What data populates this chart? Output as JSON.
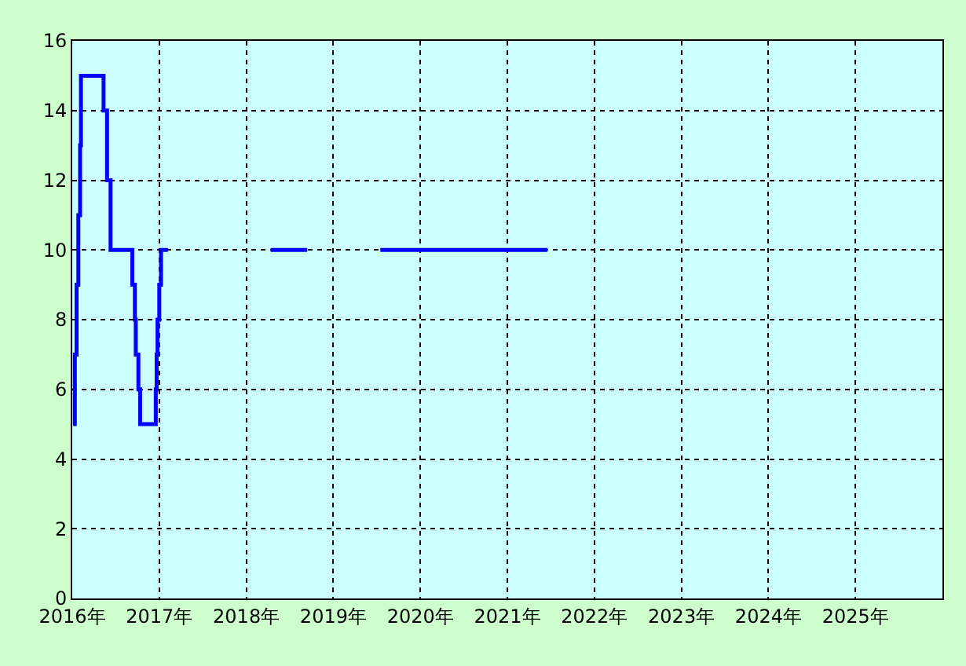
{
  "chart_data": {
    "type": "step",
    "x": [
      2016.01,
      2016.03,
      2016.05,
      2016.07,
      2016.09,
      2016.1,
      2016.36,
      2016.4,
      2016.44,
      2016.69,
      2016.72,
      2016.73,
      2016.76,
      2016.78,
      2016.96,
      2016.97,
      2016.98,
      2017.0,
      2017.02,
      2017.1,
      2017.5,
      2018.28,
      2018.7,
      2019.0,
      2019.54,
      2021.46
    ],
    "series": [
      {
        "color": "#0000ff",
        "values": [
          5,
          7,
          9,
          11,
          13,
          15,
          14,
          12,
          10,
          9,
          8,
          7,
          6,
          5,
          6,
          7,
          8,
          9,
          10,
          10,
          null,
          10,
          10,
          null,
          10,
          10
        ]
      }
    ],
    "xlim": [
      2016,
      2026
    ],
    "xticks": [
      {
        "value": 2016,
        "label": "2016年"
      },
      {
        "value": 2017,
        "label": "2017年"
      },
      {
        "value": 2018,
        "label": "2018年"
      },
      {
        "value": 2019,
        "label": "2019年"
      },
      {
        "value": 2020,
        "label": "2020年"
      },
      {
        "value": 2021,
        "label": "2021年"
      },
      {
        "value": 2022,
        "label": "2022年"
      },
      {
        "value": 2023,
        "label": "2023年"
      },
      {
        "value": 2024,
        "label": "2024年"
      },
      {
        "value": 2025,
        "label": "2025年"
      }
    ],
    "ylim": [
      0,
      16
    ],
    "yticks": [
      0,
      2,
      4,
      6,
      8,
      10,
      12,
      14,
      16
    ],
    "grid": true,
    "line_style": "solid",
    "marker": "none"
  }
}
